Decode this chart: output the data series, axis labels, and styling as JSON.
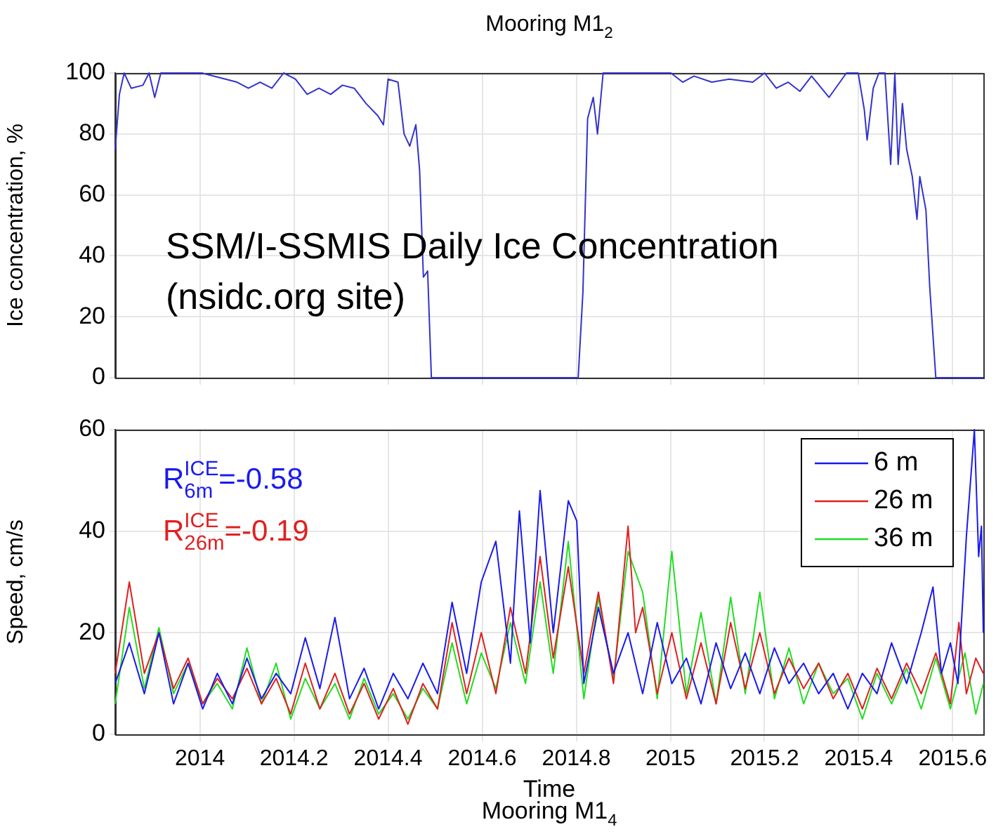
{
  "chart_data": [
    {
      "type": "line",
      "title": "Mooring M1$_{2}$",
      "ylabel": "Ice concentration, %",
      "annotations": [
        "SSM/I-SSMIS Daily Ice Concentration\n(nsidc.org site)"
      ],
      "xlim": [
        2013.82,
        2015.665
      ],
      "xticks": [
        2014,
        2014.2,
        2014.4,
        2014.6,
        2014.8,
        2015,
        2015.2,
        2015.4,
        2015.6
      ],
      "ylim": [
        0,
        100
      ],
      "yticks": [
        0,
        20,
        40,
        60,
        80,
        100
      ],
      "tick_labels": "y",
      "grid": true,
      "series": [
        {
          "color": "#3333cc",
          "x": [
            2013.82,
            2013.829,
            2013.839,
            2013.854,
            2013.879,
            2013.892,
            2013.904,
            2013.917,
            2013.954,
            2014.004,
            2014.079,
            2014.103,
            2014.128,
            2014.153,
            2014.178,
            2014.203,
            2014.228,
            2014.253,
            2014.278,
            2014.303,
            2014.328,
            2014.353,
            2014.378,
            2014.39,
            2014.4,
            2014.421,
            2014.434,
            2014.446,
            2014.459,
            2014.467,
            2014.475,
            2014.484,
            2014.492,
            2014.804,
            2014.814,
            2014.824,
            2014.836,
            2014.845,
            2014.857,
            2014.876,
            2014.938,
            2015.001,
            2015.026,
            2015.05,
            2015.088,
            2015.125,
            2015.175,
            2015.2,
            2015.225,
            2015.25,
            2015.275,
            2015.3,
            2015.337,
            2015.374,
            2015.399,
            2015.412,
            2015.418,
            2015.431,
            2015.443,
            2015.456,
            2015.468,
            2015.477,
            2015.484,
            2015.493,
            2015.502,
            2015.514,
            2015.524,
            2015.53,
            2015.543,
            2015.551,
            2015.564,
            2015.665
          ],
          "values": [
            75,
            93,
            100,
            95,
            96,
            100,
            92,
            100,
            100,
            100,
            97,
            95,
            97,
            95,
            100,
            98,
            93,
            95,
            93,
            96,
            95,
            90,
            86,
            83,
            98,
            97,
            80,
            76,
            83,
            68,
            33,
            35,
            0,
            0,
            28,
            85,
            92,
            80,
            100,
            100,
            100,
            100,
            97,
            99,
            97,
            98,
            97,
            100,
            95,
            97,
            94,
            99,
            92,
            100,
            100,
            88,
            78,
            95,
            100,
            100,
            70,
            100,
            70,
            90,
            75,
            66,
            52,
            66,
            55,
            30,
            0,
            0
          ]
        }
      ]
    },
    {
      "type": "line",
      "xlabel": "Time",
      "ylabel": "Speed, cm/s",
      "annotations": [
        "R$^{ICE}$$_{6m}$=-0.58",
        "R$^{ICE}$$_{26m}$=-0.19",
        "Mooring M1$_{4}$"
      ],
      "xlim": [
        2013.82,
        2015.665
      ],
      "xticks": [
        2014,
        2014.2,
        2014.4,
        2014.6,
        2014.8,
        2015,
        2015.2,
        2015.4,
        2015.6
      ],
      "ylim": [
        0,
        60
      ],
      "yticks": [
        0,
        20,
        40,
        60
      ],
      "grid": true,
      "legend": "top right",
      "series": [
        {
          "name": "6 m",
          "color": "#1a1aee",
          "x": [
            2013.82,
            2013.85,
            2013.882,
            2013.913,
            2013.944,
            2013.975,
            2014.006,
            2014.037,
            2014.069,
            2014.1,
            2014.131,
            2014.162,
            2014.193,
            2014.224,
            2014.255,
            2014.287,
            2014.318,
            2014.349,
            2014.38,
            2014.411,
            2014.442,
            2014.474,
            2014.505,
            2014.536,
            2014.567,
            2014.598,
            2014.629,
            2014.66,
            2014.679,
            2014.702,
            2014.723,
            2014.751,
            2014.783,
            2014.801,
            2014.816,
            2014.847,
            2014.879,
            2014.91,
            2014.941,
            2014.972,
            2015.003,
            2015.034,
            2015.065,
            2015.097,
            2015.128,
            2015.159,
            2015.19,
            2015.221,
            2015.252,
            2015.283,
            2015.315,
            2015.346,
            2015.377,
            2015.408,
            2015.439,
            2015.47,
            2015.502,
            2015.533,
            2015.558,
            2015.576,
            2015.595,
            2015.611,
            2015.629,
            2015.646,
            2015.655,
            2015.661,
            2015.665
          ],
          "values": [
            10,
            18,
            8,
            20,
            6,
            14,
            5,
            12,
            6,
            15,
            7,
            12,
            8,
            19,
            9,
            23,
            7,
            13,
            5,
            12,
            7,
            14,
            8,
            26,
            12,
            30,
            38,
            14,
            44,
            18,
            48,
            20,
            46,
            42,
            10,
            25,
            12,
            20,
            8,
            22,
            10,
            15,
            6,
            18,
            9,
            16,
            8,
            17,
            10,
            14,
            8,
            12,
            5,
            12,
            8,
            18,
            10,
            20,
            29,
            12,
            18,
            10,
            39,
            60,
            35,
            41,
            20
          ]
        },
        {
          "name": "26 m",
          "color": "#e02020",
          "x": [
            2013.82,
            2013.85,
            2013.882,
            2013.913,
            2013.944,
            2013.975,
            2014.006,
            2014.037,
            2014.069,
            2014.1,
            2014.131,
            2014.162,
            2014.193,
            2014.224,
            2014.255,
            2014.287,
            2014.318,
            2014.349,
            2014.38,
            2014.411,
            2014.442,
            2014.474,
            2014.505,
            2014.536,
            2014.567,
            2014.598,
            2014.629,
            2014.66,
            2014.692,
            2014.723,
            2014.751,
            2014.783,
            2014.816,
            2014.847,
            2014.879,
            2014.91,
            2014.926,
            2014.941,
            2014.972,
            2015.003,
            2015.034,
            2015.065,
            2015.097,
            2015.128,
            2015.159,
            2015.19,
            2015.221,
            2015.252,
            2015.283,
            2015.315,
            2015.346,
            2015.377,
            2015.408,
            2015.439,
            2015.47,
            2015.502,
            2015.533,
            2015.564,
            2015.595,
            2015.613,
            2015.629,
            2015.649,
            2015.665
          ],
          "values": [
            12,
            30,
            12,
            20,
            9,
            15,
            6,
            11,
            7,
            13,
            6,
            11,
            4,
            14,
            5,
            12,
            4,
            10,
            3,
            9,
            2,
            10,
            5,
            22,
            8,
            20,
            8,
            25,
            12,
            35,
            15,
            33,
            12,
            28,
            10,
            41,
            20,
            25,
            8,
            20,
            7,
            18,
            6,
            22,
            9,
            20,
            8,
            15,
            9,
            14,
            7,
            12,
            5,
            13,
            7,
            14,
            8,
            16,
            6,
            22,
            8,
            15,
            12
          ]
        },
        {
          "name": "36 m",
          "color": "#22dd22",
          "x": [
            2013.82,
            2013.85,
            2013.882,
            2013.913,
            2013.944,
            2013.975,
            2014.006,
            2014.037,
            2014.069,
            2014.1,
            2014.131,
            2014.162,
            2014.193,
            2014.224,
            2014.255,
            2014.287,
            2014.318,
            2014.349,
            2014.38,
            2014.411,
            2014.442,
            2014.474,
            2014.505,
            2014.536,
            2014.567,
            2014.598,
            2014.629,
            2014.66,
            2014.692,
            2014.723,
            2014.751,
            2014.783,
            2014.816,
            2014.847,
            2014.879,
            2014.91,
            2014.941,
            2014.972,
            2015.003,
            2015.034,
            2015.065,
            2015.097,
            2015.128,
            2015.159,
            2015.19,
            2015.221,
            2015.252,
            2015.283,
            2015.315,
            2015.346,
            2015.377,
            2015.408,
            2015.439,
            2015.47,
            2015.502,
            2015.533,
            2015.564,
            2015.595,
            2015.626,
            2015.649,
            2015.665
          ],
          "values": [
            6,
            25,
            9,
            21,
            8,
            14,
            6,
            10,
            5,
            17,
            6,
            14,
            3,
            11,
            5,
            10,
            3,
            11,
            4,
            8,
            3,
            9,
            5,
            18,
            6,
            16,
            9,
            22,
            10,
            30,
            12,
            38,
            7,
            27,
            11,
            36,
            28,
            7,
            36,
            8,
            24,
            6,
            27,
            8,
            28,
            7,
            17,
            6,
            14,
            8,
            11,
            3,
            12,
            6,
            13,
            5,
            15,
            5,
            16,
            4,
            10
          ]
        }
      ]
    }
  ]
}
